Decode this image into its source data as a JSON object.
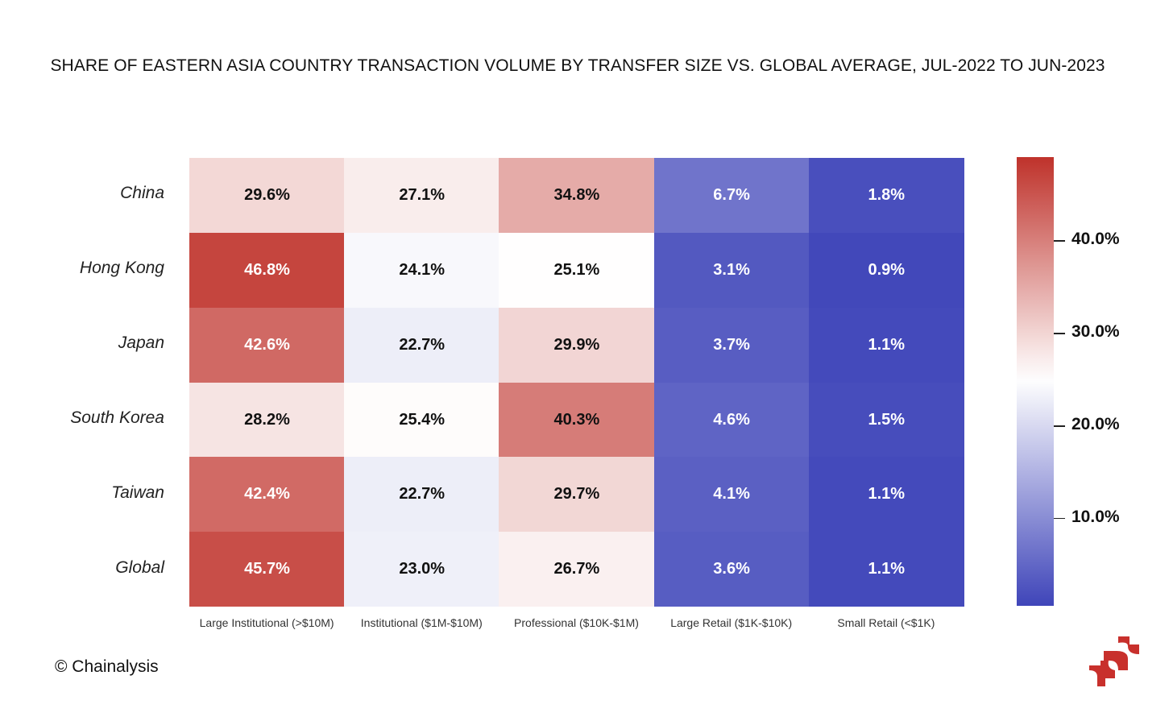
{
  "chart_data": {
    "type": "heatmap",
    "title": "SHARE OF EASTERN ASIA COUNTRY TRANSACTION VOLUME BY TRANSFER SIZE VS. GLOBAL AVERAGE, JUL-2022 TO JUN-2023",
    "rows": [
      "China",
      "Hong Kong",
      "Japan",
      "South Korea",
      "Taiwan",
      "Global"
    ],
    "columns": [
      "Large Institutional (>$10M)",
      "Institutional ($1M-$10M)",
      "Professional ($10K-$1M)",
      "Large Retail ($1K-$10K)",
      "Small Retail (<$1K)"
    ],
    "values": [
      [
        29.6,
        27.1,
        34.8,
        6.7,
        1.8
      ],
      [
        46.8,
        24.1,
        25.1,
        3.1,
        0.9
      ],
      [
        42.6,
        22.7,
        29.9,
        3.7,
        1.1
      ],
      [
        28.2,
        25.4,
        40.3,
        4.6,
        1.5
      ],
      [
        42.4,
        22.7,
        29.7,
        4.1,
        1.1
      ],
      [
        45.7,
        23.0,
        26.7,
        3.6,
        1.1
      ]
    ],
    "value_format": "percent_1dp",
    "colorbar": {
      "range": [
        0.5,
        49.0
      ],
      "midpoint": 25.0,
      "ticks": [
        10.0,
        20.0,
        30.0,
        40.0
      ],
      "tick_labels": [
        "10.0%",
        "20.0%",
        "30.0%",
        "40.0%"
      ],
      "low_color": "#3f45b9",
      "mid_color": "#ffffff",
      "high_color": "#bf322b",
      "placement": "right"
    },
    "xlabel": "",
    "ylabel": ""
  },
  "footer": {
    "credit": "© Chainalysis",
    "logo": "chainalysis-logo-icon"
  }
}
